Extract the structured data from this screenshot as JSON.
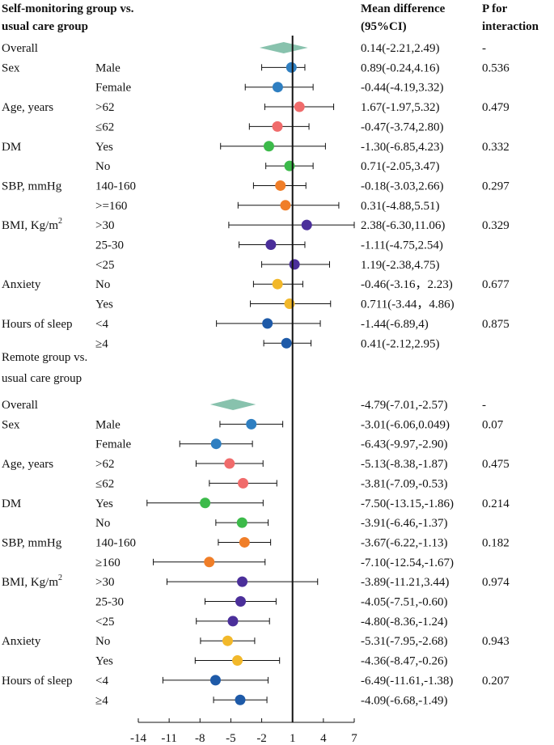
{
  "chart_data": {
    "type": "forest",
    "header": {
      "group_title_line1": "Self-monitoring group vs.",
      "group_title_line2": "usual care group",
      "col_md_line1": "Mean difference",
      "col_md_line2": "(95%CI)",
      "col_p_line1": "P for",
      "col_p_line2": "interaction"
    },
    "xaxis": {
      "ticks": [
        "-14",
        "-11",
        "-8",
        "-5",
        "-2",
        "1",
        "4",
        "7"
      ],
      "tick_values": [
        -14,
        -11,
        -8,
        -5,
        -2,
        1,
        4,
        7
      ],
      "xlim": [
        -14,
        7
      ],
      "reference_line": 1
    },
    "colors": {
      "overall": "#88c2ad",
      "sex": "#2f7fc1",
      "age": "#f06b6b",
      "dm": "#3cba4a",
      "sbp": "#f07e28",
      "bmi": "#4b2f9a",
      "anxiety": "#f2b82a",
      "sleep": "#1e5aa8"
    },
    "groups": [
      {
        "title_line1": "",
        "title_line2": "",
        "rows": [
          {
            "label": "Overall",
            "sub": "",
            "est": 0.14,
            "lo": -2.21,
            "hi": 2.49,
            "ci": "0.14(-2.21,2.49)",
            "p": "-",
            "kind": "diamond",
            "color": "overall"
          },
          {
            "label": "Sex",
            "sub": "Male",
            "est": 0.89,
            "lo": -0.24,
            "hi": 4.16,
            "ci": "0.89(-0.24,4.16)",
            "p": "0.536",
            "kind": "dot",
            "color": "sex",
            "plot_lo": -2.0,
            "plot_hi": 2.2
          },
          {
            "label": "",
            "sub": "Female",
            "est": -0.44,
            "lo": -4.19,
            "hi": 3.32,
            "ci": "-0.44(-4.19,3.32)",
            "p": "",
            "kind": "dot",
            "color": "sex",
            "plot_lo": -3.6,
            "plot_hi": 3.0
          },
          {
            "label": "Age, years",
            "sub": ">62",
            "est": 1.67,
            "lo": -1.97,
            "hi": 5.32,
            "ci": "1.67(-1.97,5.32)",
            "p": "0.479",
            "kind": "dot",
            "color": "age",
            "plot_lo": -1.7,
            "plot_hi": 5.0
          },
          {
            "label": "",
            "sub": "≤62",
            "est": -0.47,
            "lo": -3.74,
            "hi": 2.8,
            "ci": "-0.47(-3.74,2.80)",
            "p": "",
            "kind": "dot",
            "color": "age",
            "plot_lo": -3.2,
            "plot_hi": 2.6
          },
          {
            "label": "DM",
            "sub": "Yes",
            "est": -1.3,
            "lo": -6.85,
            "hi": 4.23,
            "ci": "-1.30(-6.85,4.23)",
            "p": "0.332",
            "kind": "dot",
            "color": "dm",
            "plot_lo": -6.0,
            "plot_hi": 4.2
          },
          {
            "label": "",
            "sub": "No",
            "est": 0.71,
            "lo": -2.05,
            "hi": 3.47,
            "ci": "0.71(-2.05,3.47)",
            "p": "",
            "kind": "dot",
            "color": "dm",
            "plot_lo": -1.6,
            "plot_hi": 3.0
          },
          {
            "label": "SBP, mmHg",
            "sub": "140-160",
            "est": -0.18,
            "lo": -3.03,
            "hi": 2.66,
            "ci": "-0.18(-3.03,2.66)",
            "p": "0.297",
            "kind": "dot",
            "color": "sbp",
            "plot_lo": -2.8,
            "plot_hi": 2.3
          },
          {
            "label": "",
            "sub": ">=160",
            "est": 0.31,
            "lo": -4.88,
            "hi": 5.51,
            "ci": "0.31(-4.88,5.51)",
            "p": "",
            "kind": "dot",
            "color": "sbp",
            "plot_lo": -4.3,
            "plot_hi": 5.5
          },
          {
            "label": "BMI, Kg/m",
            "sup": "2",
            "sub": ">30",
            "est": 2.38,
            "lo": -6.3,
            "hi": 11.06,
            "ci": "2.38(-6.30,11.06)",
            "p": "0.329",
            "kind": "dot",
            "color": "bmi",
            "plot_lo": -5.2,
            "plot_hi": 7.0
          },
          {
            "label": "",
            "sub": "25-30",
            "est": -1.11,
            "lo": -4.75,
            "hi": 2.54,
            "ci": "-1.11(-4.75,2.54)",
            "p": "",
            "kind": "dot",
            "color": "bmi",
            "plot_lo": -4.2,
            "plot_hi": 2.2
          },
          {
            "label": "",
            "sub": "<25",
            "est": 1.19,
            "lo": -2.38,
            "hi": 4.75,
            "ci": "1.19(-2.38,4.75)",
            "p": "",
            "kind": "dot",
            "color": "bmi",
            "plot_lo": -2.0,
            "plot_hi": 4.6
          },
          {
            "label": "Anxiety",
            "sub": "No",
            "est": -0.46,
            "lo": -3.16,
            "hi": 2.23,
            "ci": "-0.46(-3.16，2.23)",
            "p": "0.677",
            "kind": "dot",
            "color": "anxiety",
            "plot_lo": -2.8,
            "plot_hi": 2.0
          },
          {
            "label": "",
            "sub": "Yes",
            "est": 0.711,
            "lo": -3.44,
            "hi": 4.86,
            "ci": "0.711(-3.44，4.86)",
            "p": "",
            "kind": "dot",
            "color": "anxiety",
            "plot_lo": -3.1,
            "plot_hi": 4.7
          },
          {
            "label": "Hours of sleep",
            "sub": "<4",
            "est": -1.44,
            "lo": -6.89,
            "hi": 4,
            "ci": "-1.44(-6.89,4)",
            "p": "0.875",
            "kind": "dot",
            "color": "sleep",
            "plot_lo": -6.4,
            "plot_hi": 3.7
          },
          {
            "label": "",
            "sub": "≥4",
            "est": 0.41,
            "lo": -2.12,
            "hi": 2.95,
            "ci": "0.41(-2.12,2.95)",
            "p": "",
            "kind": "dot",
            "color": "sleep",
            "plot_lo": -1.8,
            "plot_hi": 2.8
          }
        ]
      },
      {
        "title_line1": "Remote group vs.",
        "title_line2": "usual care group",
        "rows": [
          {
            "label": "Overall",
            "sub": "",
            "est": -4.79,
            "lo": -7.01,
            "hi": -2.57,
            "ci": "-4.79(-7.01,-2.57)",
            "p": "-",
            "kind": "diamond",
            "color": "overall"
          },
          {
            "label": "Sex",
            "sub": "Male",
            "est": -3.01,
            "lo": -6.06,
            "hi": 0.049,
            "ci": "-3.01(-6.06,0.049)",
            "p": "0.07",
            "kind": "dot",
            "color": "sex"
          },
          {
            "label": "",
            "sub": "Female",
            "est": -6.43,
            "lo": -9.97,
            "hi": -2.9,
            "ci": "-6.43(-9.97,-2.90)",
            "p": "",
            "kind": "dot",
            "color": "sex"
          },
          {
            "label": "Age, years",
            "sub": ">62",
            "est": -5.13,
            "lo": -8.38,
            "hi": -1.87,
            "ci": "-5.13(-8.38,-1.87)",
            "p": "0.475",
            "kind": "dot",
            "color": "age"
          },
          {
            "label": "",
            "sub": "≤62",
            "est": -3.81,
            "lo": -7.09,
            "hi": -0.53,
            "ci": "-3.81(-7.09,-0.53)",
            "p": "",
            "kind": "dot",
            "color": "age"
          },
          {
            "label": "DM",
            "sub": "Yes",
            "est": -7.5,
            "lo": -13.15,
            "hi": -1.86,
            "ci": "-7.50(-13.15,-1.86)",
            "p": "0.214",
            "kind": "dot",
            "color": "dm"
          },
          {
            "label": "",
            "sub": "No",
            "est": -3.91,
            "lo": -6.46,
            "hi": -1.37,
            "ci": "-3.91(-6.46,-1.37)",
            "p": "",
            "kind": "dot",
            "color": "dm"
          },
          {
            "label": "SBP, mmHg",
            "sub": "140-160",
            "est": -3.67,
            "lo": -6.22,
            "hi": -1.13,
            "ci": "-3.67(-6.22,-1.13)",
            "p": "0.182",
            "kind": "dot",
            "color": "sbp"
          },
          {
            "label": "",
            "sub": "≥160",
            "est": -7.1,
            "lo": -12.54,
            "hi": -1.67,
            "ci": "-7.10(-12.54,-1.67)",
            "p": "",
            "kind": "dot",
            "color": "sbp"
          },
          {
            "label": "BMI, Kg/m",
            "sup": "2",
            "sub": ">30",
            "est": -3.89,
            "lo": -11.21,
            "hi": 3.44,
            "ci": "-3.89(-11.21,3.44)",
            "p": "0.974",
            "kind": "dot",
            "color": "bmi"
          },
          {
            "label": "",
            "sub": "25-30",
            "est": -4.05,
            "lo": -7.51,
            "hi": -0.6,
            "ci": "-4.05(-7.51,-0.60)",
            "p": "",
            "kind": "dot",
            "color": "bmi"
          },
          {
            "label": "",
            "sub": "<25",
            "est": -4.8,
            "lo": -8.36,
            "hi": -1.24,
            "ci": "-4.80(-8.36,-1.24)",
            "p": "",
            "kind": "dot",
            "color": "bmi"
          },
          {
            "label": "Anxiety",
            "sub": "No",
            "est": -5.31,
            "lo": -7.95,
            "hi": -2.68,
            "ci": "-5.31(-7.95,-2.68)",
            "p": "0.943",
            "kind": "dot",
            "color": "anxiety"
          },
          {
            "label": "",
            "sub": "Yes",
            "est": -4.36,
            "lo": -8.47,
            "hi": -0.26,
            "ci": "-4.36(-8.47,-0.26)",
            "p": "",
            "kind": "dot",
            "color": "anxiety"
          },
          {
            "label": "Hours of sleep",
            "sub": "<4",
            "est": -6.49,
            "lo": -11.61,
            "hi": -1.38,
            "ci": "-6.49(-11.61,-1.38)",
            "p": "0.207",
            "kind": "dot",
            "color": "sleep"
          },
          {
            "label": "",
            "sub": "≥4",
            "est": -4.09,
            "lo": -6.68,
            "hi": -1.49,
            "ci": "-4.09(-6.68,-1.49)",
            "p": "",
            "kind": "dot",
            "color": "sleep"
          }
        ]
      }
    ]
  }
}
